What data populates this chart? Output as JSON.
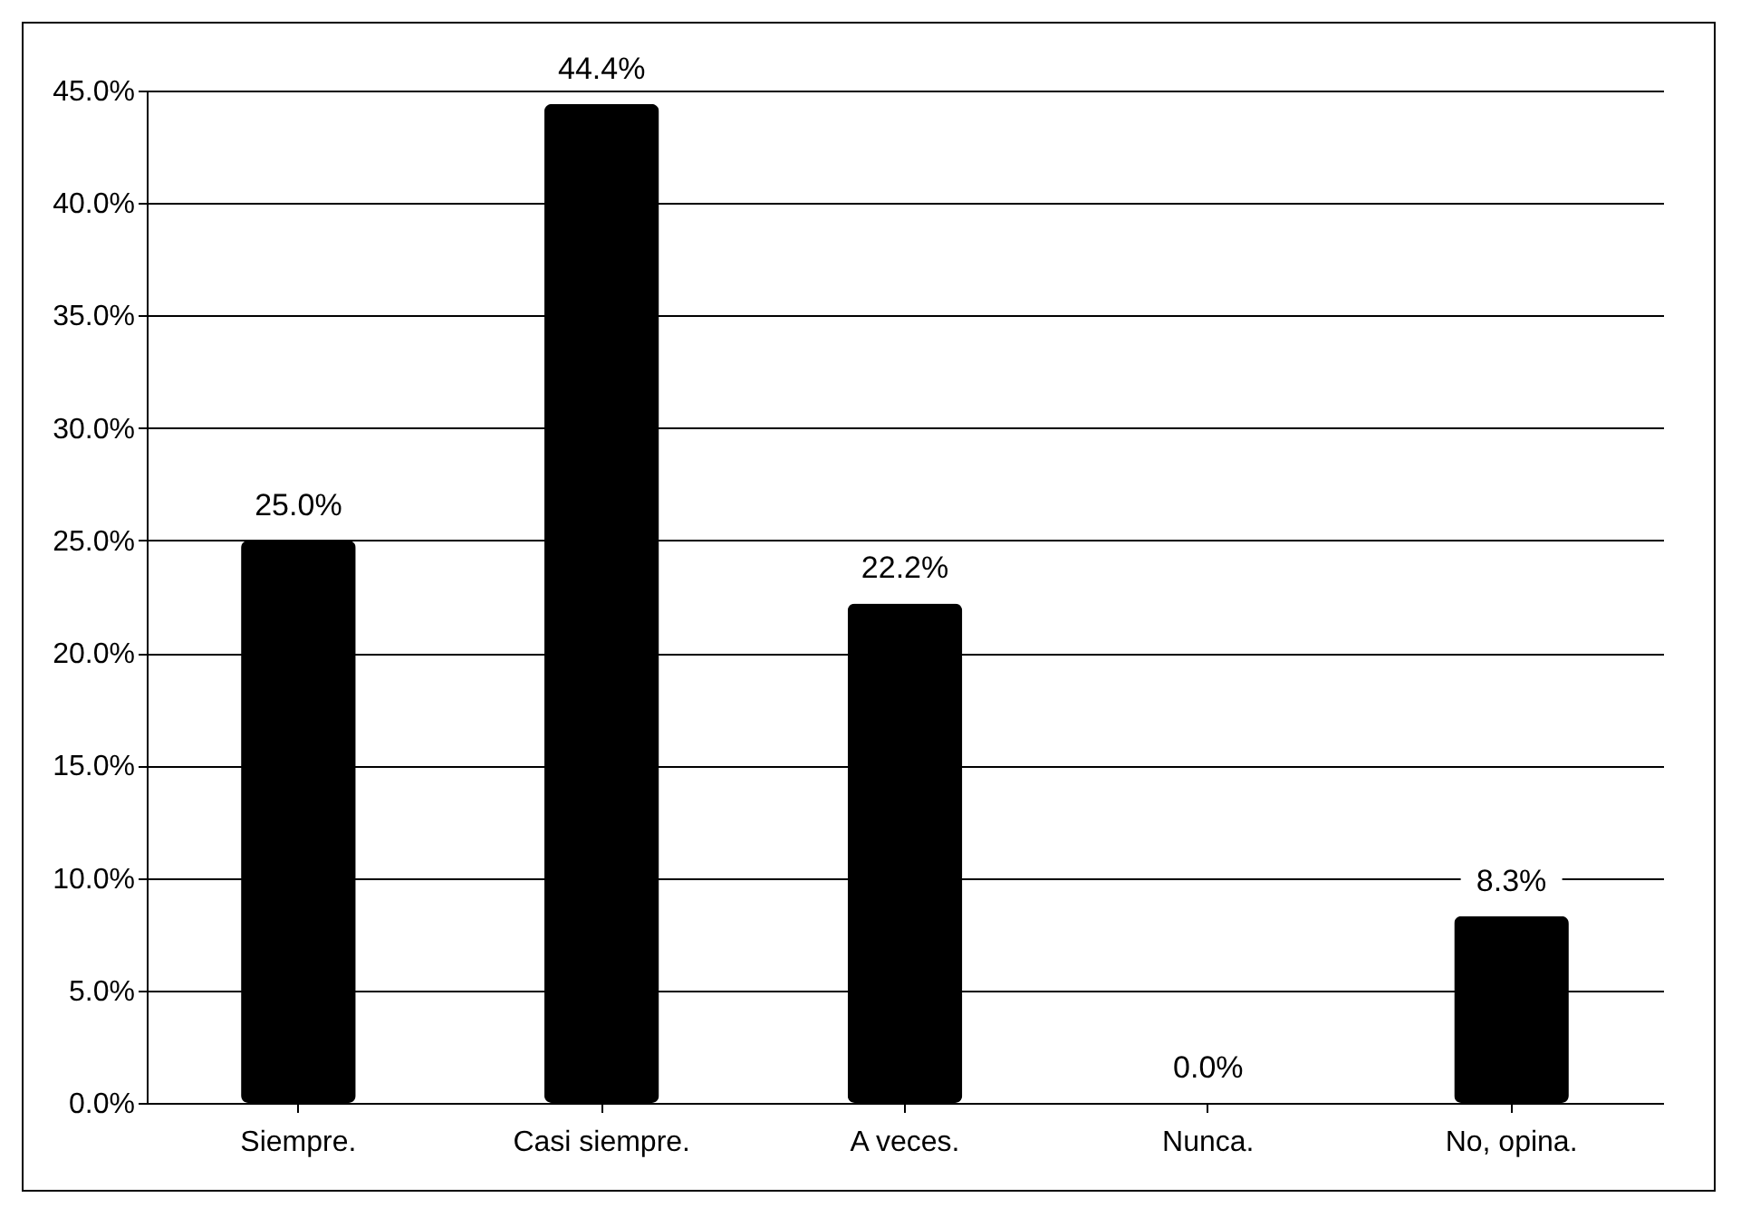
{
  "chart_data": {
    "type": "bar",
    "categories": [
      "Siempre.",
      "Casi siempre.",
      "A veces.",
      "Nunca.",
      "No, opina."
    ],
    "values": [
      25.0,
      44.4,
      22.2,
      0.0,
      8.3
    ],
    "value_labels": [
      "25.0%",
      "44.4%",
      "22.2%",
      "0.0%",
      "8.3%"
    ],
    "color": "#000000",
    "ylim": [
      0,
      45
    ],
    "yticks": [
      {
        "value": 0,
        "label": "0.0%"
      },
      {
        "value": 5,
        "label": "5.0%"
      },
      {
        "value": 10,
        "label": "10.0%"
      },
      {
        "value": 15,
        "label": "15.0%"
      },
      {
        "value": 20,
        "label": "20.0%"
      },
      {
        "value": 25,
        "label": "25.0%"
      },
      {
        "value": 30,
        "label": "30.0%"
      },
      {
        "value": 35,
        "label": "35.0%"
      },
      {
        "value": 40,
        "label": "40.0%"
      },
      {
        "value": 45,
        "label": "45.0%"
      }
    ],
    "grid": "y"
  }
}
